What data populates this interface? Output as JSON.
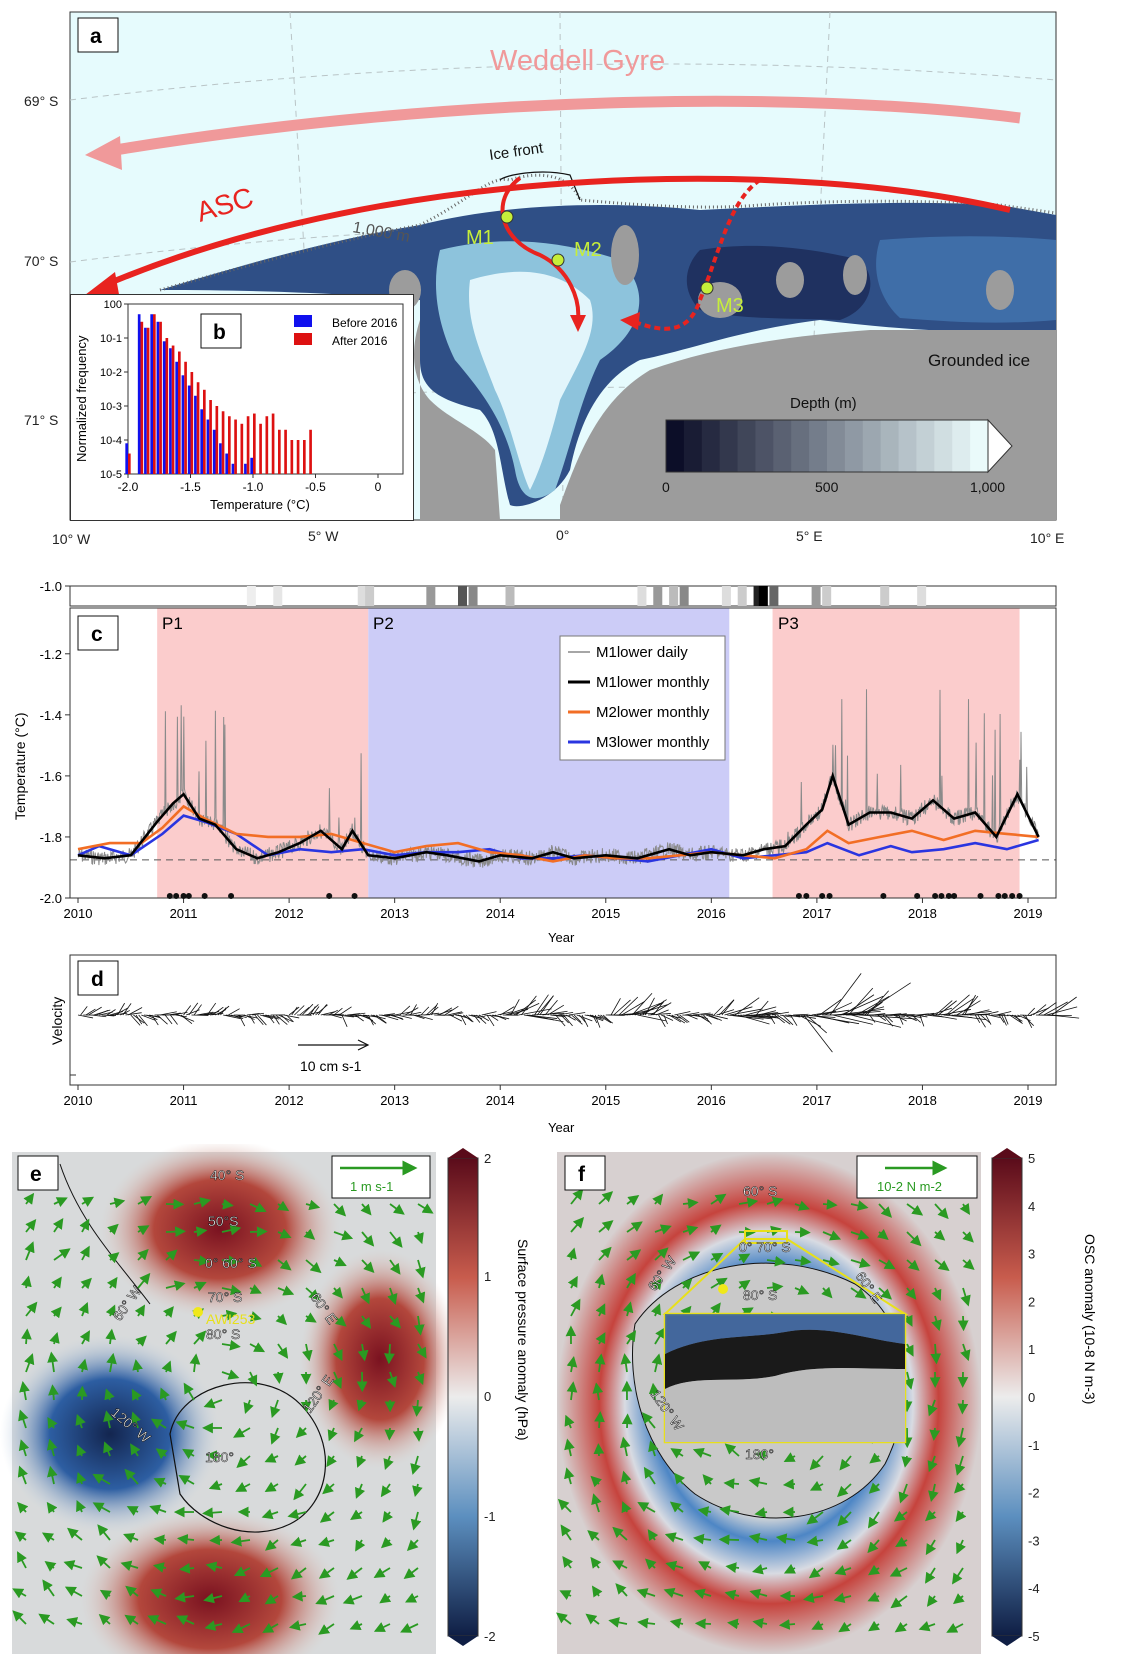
{
  "panels": {
    "a": {
      "letter": "a"
    },
    "b": {
      "letter": "b"
    },
    "c": {
      "letter": "c"
    },
    "d": {
      "letter": "d"
    },
    "e": {
      "letter": "e"
    },
    "f": {
      "letter": "f"
    }
  },
  "map_a": {
    "lat_labels": [
      "69° S",
      "70° S",
      "71° S"
    ],
    "lon_labels": [
      "10° W",
      "5° W",
      "0°",
      "5° E",
      "10° E"
    ],
    "labels": {
      "weddell_gyre": "Weddell Gyre",
      "asc": "ASC",
      "ice_front": "Ice front",
      "isobath": "1,000 m",
      "grounded_ice": "Grounded ice",
      "m1": "M1",
      "m2": "M2",
      "m3": "M3"
    },
    "colorbar": {
      "title": "Depth (m)",
      "ticks": [
        "0",
        "500",
        "1,000"
      ]
    },
    "colors": {
      "ocean_light": "#e6fbfd",
      "gyre": "#f0999a",
      "asc": "#e8231f",
      "mooring": "#c6ee3a",
      "land": "#9c9c9c"
    }
  },
  "chart_data": [
    {
      "type": "bar",
      "panel": "b",
      "xlabel": "Temperature (°C)",
      "ylabel": "Normalized frequency",
      "xticks": [
        "-2.0",
        "-1.5",
        "-1.0",
        "-0.5",
        "0"
      ],
      "yticks": [
        "10-5",
        "10-4",
        "10-3",
        "10-2",
        "10-1",
        "100"
      ],
      "yscale": "log",
      "ylim": [
        1e-05,
        1
      ],
      "xlim": [
        -2.0,
        0.2
      ],
      "x": [
        -2.0,
        -1.9,
        -1.85,
        -1.8,
        -1.75,
        -1.7,
        -1.65,
        -1.6,
        -1.55,
        -1.5,
        -1.45,
        -1.4,
        -1.35,
        -1.3,
        -1.25,
        -1.2,
        -1.15,
        -1.1,
        -1.05,
        -1.0,
        -0.95,
        -0.9,
        -0.85,
        -0.8,
        -0.75,
        -0.7,
        -0.65,
        -0.6,
        -0.55,
        -0.5,
        -0.45,
        -0.4,
        -0.35,
        -0.3,
        -0.25,
        -0.2,
        -0.15,
        -0.1,
        -0.05,
        0.0,
        0.05,
        0.1,
        0.15
      ],
      "series": [
        {
          "name": "Before 2016",
          "color": "#1010ee",
          "values": [
            8e-05,
            0.5,
            0.2,
            0.5,
            0.3,
            0.08,
            0.05,
            0.02,
            0.008,
            0.004,
            0.002,
            0.0008,
            0.0004,
            0.0002,
            8e-05,
            4e-05,
            2e-05,
            1e-05,
            2e-05,
            3e-05,
            0,
            0,
            0,
            0,
            0,
            0,
            0,
            0,
            0,
            0,
            0,
            0,
            0,
            0,
            0,
            0,
            0,
            0,
            0,
            0,
            0,
            0,
            0
          ]
        },
        {
          "name": "After 2016",
          "color": "#dd1111",
          "values": [
            4e-05,
            0.3,
            0.2,
            0.5,
            0.3,
            0.1,
            0.06,
            0.04,
            0.02,
            0.01,
            0.005,
            0.003,
            0.0015,
            0.001,
            0.0007,
            0.0005,
            0.0004,
            0.0003,
            0.0005,
            0.0006,
            0.0003,
            0.0005,
            0.0006,
            0.0002,
            0.0002,
            0.0001,
            0.0001,
            0.0001,
            0.0002,
            0,
            0,
            0,
            0,
            0,
            0,
            0,
            0,
            0,
            0,
            0,
            0,
            0,
            0
          ]
        }
      ]
    },
    {
      "type": "line",
      "panel": "c",
      "xlabel": "Year",
      "ylabel": "Temperature (°C)",
      "xlim": [
        2010,
        2019.3
      ],
      "ylim": [
        -2.0,
        -1.05
      ],
      "xticks": [
        "2010",
        "2011",
        "2012",
        "2013",
        "2014",
        "2015",
        "2016",
        "2017",
        "2018",
        "2019"
      ],
      "yticks": [
        "-2.0",
        "-1.8",
        "-1.6",
        "-1.4",
        "-1.2",
        "-1.0"
      ],
      "freezing_reference": -1.875,
      "periods": [
        {
          "label": "P1",
          "start": 2010.75,
          "end": 2012.75,
          "color": "#fbcccc"
        },
        {
          "label": "P2",
          "start": 2012.75,
          "end": 2016.17,
          "color": "#ccccf7"
        },
        {
          "label": "P3",
          "start": 2016.58,
          "end": 2018.92,
          "color": "#fbcccc"
        }
      ],
      "legend": {
        "daily": "M1lower daily",
        "m1": "M1lower monthly",
        "m2": "M2lower monthly",
        "m3": "M3lower monthly"
      },
      "event_dots": [
        2010.87,
        2010.93,
        2011.0,
        2011.05,
        2011.2,
        2011.45,
        2012.38,
        2012.62,
        2016.83,
        2016.9,
        2017.05,
        2017.12,
        2017.63,
        2017.95,
        2018.12,
        2018.18,
        2018.25,
        2018.3,
        2018.55,
        2018.72,
        2018.78,
        2018.85,
        2018.92
      ],
      "series": [
        {
          "name": "M1lower monthly",
          "color": "#000000",
          "x": [
            2010.0,
            2010.25,
            2010.5,
            2010.75,
            2010.9,
            2011.0,
            2011.15,
            2011.3,
            2011.5,
            2011.7,
            2011.9,
            2012.1,
            2012.3,
            2012.5,
            2012.6,
            2012.75,
            2013.0,
            2013.3,
            2013.5,
            2013.8,
            2014.0,
            2014.3,
            2014.5,
            2014.7,
            2015.0,
            2015.3,
            2015.6,
            2015.8,
            2016.0,
            2016.3,
            2016.5,
            2016.7,
            2016.9,
            2017.05,
            2017.15,
            2017.3,
            2017.5,
            2017.7,
            2017.9,
            2018.1,
            2018.3,
            2018.5,
            2018.7,
            2018.9,
            2019.1
          ],
          "values": [
            -1.86,
            -1.87,
            -1.86,
            -1.75,
            -1.69,
            -1.66,
            -1.74,
            -1.76,
            -1.84,
            -1.87,
            -1.85,
            -1.82,
            -1.78,
            -1.84,
            -1.78,
            -1.86,
            -1.87,
            -1.85,
            -1.86,
            -1.88,
            -1.86,
            -1.87,
            -1.85,
            -1.87,
            -1.86,
            -1.87,
            -1.84,
            -1.86,
            -1.85,
            -1.86,
            -1.84,
            -1.83,
            -1.76,
            -1.71,
            -1.6,
            -1.76,
            -1.72,
            -1.72,
            -1.74,
            -1.68,
            -1.74,
            -1.72,
            -1.8,
            -1.66,
            -1.8
          ]
        },
        {
          "name": "M2lower monthly",
          "color": "#f26e25",
          "x": [
            2010.0,
            2010.3,
            2010.6,
            2010.8,
            2011.0,
            2011.2,
            2011.5,
            2011.8,
            2012.1,
            2012.4,
            2012.7,
            2013.0,
            2013.3,
            2013.6,
            2013.9,
            2014.2,
            2014.5,
            2014.8,
            2015.1,
            2015.4,
            2015.7,
            2016.0,
            2016.3,
            2016.6,
            2016.9,
            2017.1,
            2017.3,
            2017.6,
            2017.9,
            2018.2,
            2018.5,
            2018.8,
            2019.1
          ],
          "values": [
            -1.84,
            -1.82,
            -1.82,
            -1.77,
            -1.7,
            -1.74,
            -1.79,
            -1.8,
            -1.8,
            -1.79,
            -1.82,
            -1.85,
            -1.83,
            -1.82,
            -1.85,
            -1.86,
            -1.88,
            -1.86,
            -1.87,
            -1.87,
            -1.86,
            -1.85,
            -1.86,
            -1.87,
            -1.84,
            -1.78,
            -1.82,
            -1.8,
            -1.78,
            -1.81,
            -1.78,
            -1.79,
            -1.8
          ]
        },
        {
          "name": "M3lower monthly",
          "color": "#2a35e0",
          "x": [
            2010.0,
            2010.2,
            2010.5,
            2010.8,
            2011.0,
            2011.2,
            2011.5,
            2011.8,
            2012.1,
            2012.4,
            2012.7,
            2013.0,
            2013.3,
            2013.6,
            2013.9,
            2014.2,
            2014.5,
            2014.8,
            2015.1,
            2015.4,
            2015.7,
            2016.0,
            2016.3,
            2016.6,
            2016.9,
            2017.1,
            2017.4,
            2017.7,
            2017.9,
            2018.2,
            2018.5,
            2018.8,
            2019.1
          ],
          "values": [
            -1.86,
            -1.83,
            -1.86,
            -1.79,
            -1.73,
            -1.75,
            -1.79,
            -1.86,
            -1.84,
            -1.85,
            -1.84,
            -1.86,
            -1.85,
            -1.85,
            -1.84,
            -1.87,
            -1.87,
            -1.86,
            -1.87,
            -1.88,
            -1.86,
            -1.84,
            -1.87,
            -1.86,
            -1.85,
            -1.82,
            -1.86,
            -1.83,
            -1.85,
            -1.84,
            -1.82,
            -1.84,
            -1.81
          ]
        }
      ]
    },
    {
      "type": "line",
      "panel": "d",
      "ylabel": "Velocity",
      "xlabel": "Year",
      "xticks": [
        "2010",
        "2011",
        "2012",
        "2013",
        "2014",
        "2015",
        "2016",
        "2017",
        "2018",
        "2019"
      ],
      "scale_label": "10 cm s-1"
    }
  ],
  "map_e": {
    "labels": {
      "lat40": "40° S",
      "lat50": "50°S",
      "lat60": "0° 60° S",
      "lat70": "70° S",
      "lat80": "80° S",
      "lon60w": "60° W",
      "lon60e": "60° E",
      "lon120w": "120° W",
      "lon120e": "120° E",
      "lon180": "180°",
      "station": "AWI253"
    },
    "scale_label": "1 m s-1",
    "colorbar": {
      "title": "Surface pressure anomaly (hPa)",
      "ticks": [
        "2",
        "1",
        "0",
        "-1",
        "-2"
      ]
    }
  },
  "map_f": {
    "labels": {
      "lat60": "60° S",
      "lat70": "0° 70° S",
      "lat80": "80° S",
      "lon60w": "60° W",
      "lon60e": "60° E",
      "lon120w": "120° W",
      "lon180": "180°"
    },
    "scale_label": "10-2 N m-2",
    "colorbar": {
      "title": "OSC anomaly (10-8 N m-3)",
      "ticks": [
        "5",
        "4",
        "3",
        "2",
        "1",
        "0",
        "-1",
        "-2",
        "-3",
        "-4",
        "-5"
      ]
    }
  }
}
